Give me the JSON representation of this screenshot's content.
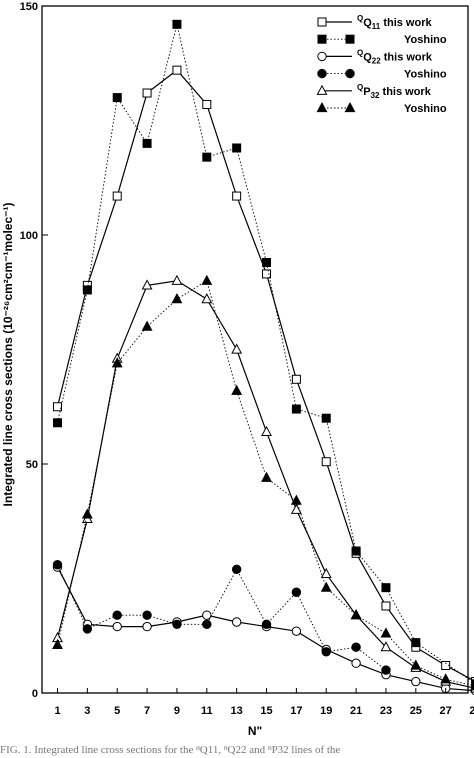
{
  "chart_data": {
    "type": "line",
    "xlabel": "N\"",
    "ylabel": "Integrated line cross sections (10⁻²⁶cm²cm⁻¹molec⁻¹)",
    "xlim": [
      0,
      32
    ],
    "ylim": [
      0,
      150
    ],
    "xticks": [
      1,
      3,
      5,
      7,
      9,
      11,
      13,
      15,
      17,
      19,
      21,
      23,
      25,
      27,
      29,
      31
    ],
    "yticks": [
      0,
      50,
      100,
      150
    ],
    "grid": false,
    "legend_position": "top-right",
    "series": [
      {
        "name": "ᴽQ11 this work",
        "legend_main": "Q",
        "legend_super": "Q",
        "legend_sub": "11",
        "legend_tail": " this work",
        "marker": "open-square",
        "line": "solid",
        "x": [
          1,
          3,
          5,
          7,
          9,
          11,
          13,
          15,
          17,
          19,
          21,
          23,
          25,
          27,
          29,
          31
        ],
        "y": [
          62.5,
          89,
          108.5,
          131,
          136,
          128.5,
          108.5,
          91.5,
          68.5,
          50.5,
          30.5,
          19,
          10,
          6,
          2.5,
          1.2
        ]
      },
      {
        "name": "Yoshino",
        "legend_tail": "Yoshino",
        "marker": "filled-square",
        "line": "dotted",
        "x": [
          1,
          3,
          5,
          7,
          9,
          11,
          13,
          15,
          17,
          19,
          21,
          23,
          25,
          29
        ],
        "y": [
          59,
          88,
          130,
          120,
          146,
          117,
          119,
          94,
          62,
          60,
          31,
          23,
          11,
          2
        ]
      },
      {
        "name": "ᴽQ22 this work",
        "legend_main": "Q",
        "legend_super": "Q",
        "legend_sub": "22",
        "legend_tail": " this work",
        "marker": "open-circle",
        "line": "solid",
        "x": [
          1,
          3,
          5,
          7,
          9,
          11,
          13,
          15,
          17,
          19,
          21,
          23,
          25,
          27,
          29
        ],
        "y": [
          27.5,
          15,
          14.5,
          14.5,
          15.5,
          17,
          15.5,
          14.5,
          13.5,
          9.5,
          6.5,
          4,
          2.5,
          1,
          0.5
        ]
      },
      {
        "name": "Yoshino",
        "legend_tail": "Yoshino",
        "marker": "filled-circle",
        "line": "dotted",
        "x": [
          1,
          3,
          5,
          7,
          9,
          11,
          13,
          15,
          17,
          19,
          21,
          23
        ],
        "y": [
          28,
          14,
          17,
          17,
          15,
          15,
          27,
          15,
          22,
          9,
          10,
          5
        ]
      },
      {
        "name": "ᴽP32 this work",
        "legend_main": "P",
        "legend_super": "Q",
        "legend_sub": "32",
        "legend_tail": " this work",
        "marker": "open-triangle",
        "line": "solid",
        "x": [
          1,
          3,
          5,
          7,
          9,
          11,
          13,
          15,
          17,
          19,
          21,
          23,
          25,
          27,
          29
        ],
        "y": [
          12,
          38,
          73,
          89,
          90,
          86,
          75,
          57,
          40,
          26,
          17,
          10,
          5.5,
          2.5,
          1
        ]
      },
      {
        "name": "Yoshino",
        "legend_tail": "Yoshino",
        "marker": "filled-triangle",
        "line": "dotted",
        "x": [
          1,
          3,
          5,
          7,
          9,
          11,
          13,
          15,
          17,
          19,
          21,
          23,
          25,
          27,
          29
        ],
        "y": [
          10.5,
          39,
          72,
          80,
          86,
          90,
          66,
          47,
          42,
          23,
          17,
          13,
          6,
          3,
          1.5
        ]
      }
    ]
  },
  "caption": "FIG. 1. Integrated line cross sections for the ᴽQ11, ᴽQ22 and ᴽP32 lines of the"
}
